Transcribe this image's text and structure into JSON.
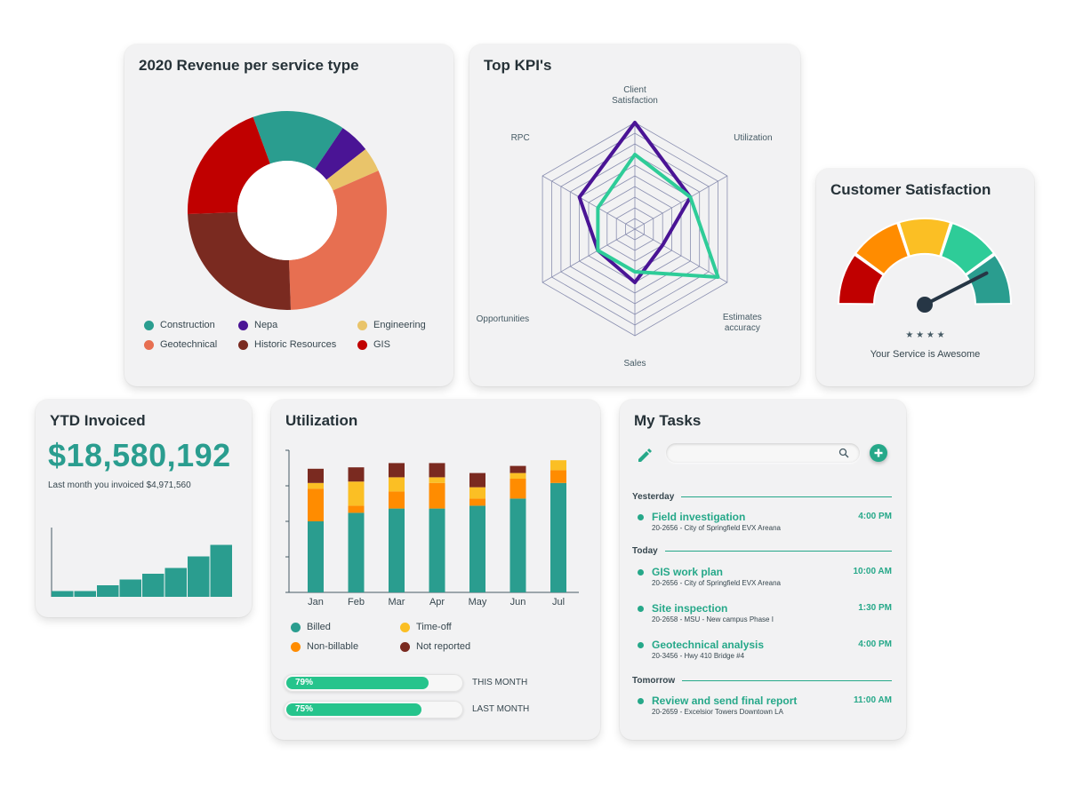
{
  "colors": {
    "teal": "#2a9d8f",
    "purple": "#4a1495",
    "sand": "#e9c46a",
    "coral": "#e76f51",
    "maroon": "#7a2a20",
    "red": "#c00000",
    "green": "#26c48c",
    "orange": "#ff8c00",
    "yellow": "#fbbf24",
    "accent": "#26a889"
  },
  "revenue": {
    "title": "2020 Revenue per service type",
    "chart_data": {
      "type": "pie",
      "title": "2020 Revenue per service type",
      "categories": [
        "Construction",
        "Nepa",
        "Engineering",
        "Geotechnical",
        "Historic Resources",
        "GIS"
      ],
      "values": [
        15,
        5,
        4,
        31,
        25,
        20
      ],
      "legend": [
        "Construction",
        "Nepa",
        "Engineering",
        "Geotechnical",
        "Historic Resources",
        "GIS"
      ]
    }
  },
  "kpi": {
    "title": "Top KPI's",
    "chart_data": {
      "type": "radar",
      "axes": [
        "Client Satisfaction",
        "Utilization",
        "Estimates accuracy",
        "Sales",
        "Opportunities",
        "RPC"
      ],
      "axis_lines": [
        [
          "Client",
          "Satisfaction"
        ],
        [
          "Utilization"
        ],
        [
          "Estimates",
          "accuracy"
        ],
        [
          "Sales"
        ],
        [
          "Opportunities"
        ],
        [
          "RPC"
        ]
      ],
      "rings": 10,
      "series": [
        {
          "name": "purple",
          "values": [
            10,
            6,
            3,
            5,
            4,
            6
          ]
        },
        {
          "name": "green",
          "values": [
            7,
            6,
            9,
            4,
            4,
            4
          ]
        }
      ]
    }
  },
  "satisfaction": {
    "title": "Customer Satisfaction",
    "stars": "★ ★ ★ ★",
    "caption": "Your Service is Awesome",
    "chart_data": {
      "type": "gauge",
      "segments": 5,
      "value": 0.85
    }
  },
  "ytd": {
    "title": "YTD Invoiced",
    "amount": "$18,580,192",
    "subtitle": "Last month you invoiced $4,971,560",
    "chart_data": {
      "type": "bar",
      "values": [
        1,
        1,
        2,
        3,
        4,
        5,
        7,
        9
      ],
      "ylim": [
        0,
        12
      ]
    }
  },
  "utilization": {
    "title": "Utilization",
    "chart_data": {
      "type": "bar",
      "stacked": true,
      "categories": [
        "Jan",
        "Feb",
        "Mar",
        "Apr",
        "May",
        "Jun",
        "Jul"
      ],
      "ylim": [
        0,
        100
      ],
      "series": [
        {
          "name": "Billed",
          "values": [
            50,
            56,
            59,
            59,
            61,
            66,
            77
          ]
        },
        {
          "name": "Non-billable",
          "values": [
            23,
            5,
            12,
            18,
            5,
            14,
            9
          ]
        },
        {
          "name": "Time-off",
          "values": [
            4,
            17,
            10,
            4,
            8,
            4,
            7
          ]
        },
        {
          "name": "Not reported",
          "values": [
            10,
            10,
            10,
            10,
            10,
            5,
            0
          ]
        }
      ],
      "legend": [
        "Billed",
        "Time-off",
        "Non-billable",
        "Not reported"
      ]
    },
    "progress": [
      {
        "label": "79%",
        "value": 0.79,
        "caption": "THIS MONTH"
      },
      {
        "label": "75%",
        "value": 0.75,
        "caption": "LAST MONTH"
      }
    ]
  },
  "tasks": {
    "title": "My Tasks",
    "search_placeholder": "",
    "sections": [
      {
        "label": "Yesterday",
        "items": [
          {
            "title": "Field investigation",
            "sub": "20-2656 - City of Springfield EVX Areana",
            "time": "4:00 PM"
          }
        ]
      },
      {
        "label": "Today",
        "items": [
          {
            "title": "GIS work plan",
            "sub": "20-2656 - City of Springfield EVX Areana",
            "time": "10:00 AM"
          },
          {
            "title": "Site inspection",
            "sub": "20-2658 - MSU - New campus Phase I",
            "time": "1:30 PM"
          },
          {
            "title": "Geotechnical analysis",
            "sub": "20-3456 - Hwy 410 Bridge #4",
            "time": "4:00 PM"
          }
        ]
      },
      {
        "label": "Tomorrow",
        "items": [
          {
            "title": "Review and send final report",
            "sub": "20-2659 - Excelsior Towers Downtown LA",
            "time": "11:00 AM"
          }
        ]
      }
    ]
  }
}
